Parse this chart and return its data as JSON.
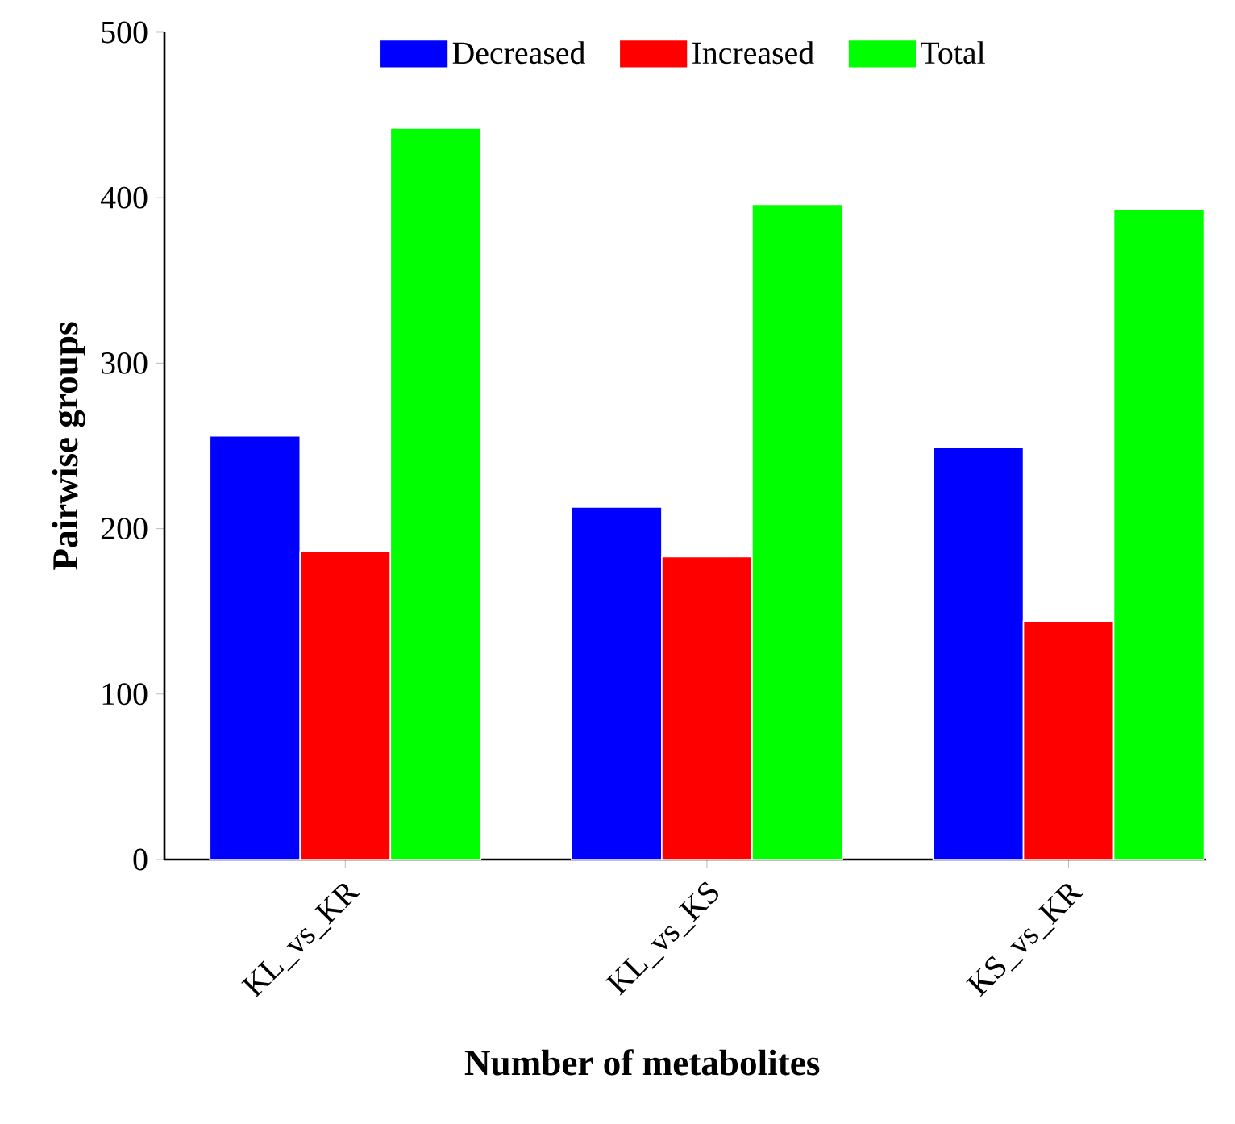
{
  "chart_data": {
    "type": "bar",
    "xlabel": "Number of metabolites",
    "ylabel": "Pairwise groups",
    "categories": [
      "KL_vs_KR",
      "KL_vs_KS",
      "KS_vs_KR"
    ],
    "series": [
      {
        "name": "Decreased",
        "color": "#0000ff",
        "values": [
          256,
          213,
          249
        ]
      },
      {
        "name": "Increased",
        "color": "#ff0000",
        "values": [
          186,
          183,
          144
        ]
      },
      {
        "name": "Total",
        "color": "#00ff00",
        "values": [
          442,
          396,
          393
        ]
      }
    ],
    "ylim": [
      0,
      500
    ],
    "yticks": [
      0,
      100,
      200,
      300,
      400,
      500
    ],
    "legend": "top",
    "grid": false
  }
}
